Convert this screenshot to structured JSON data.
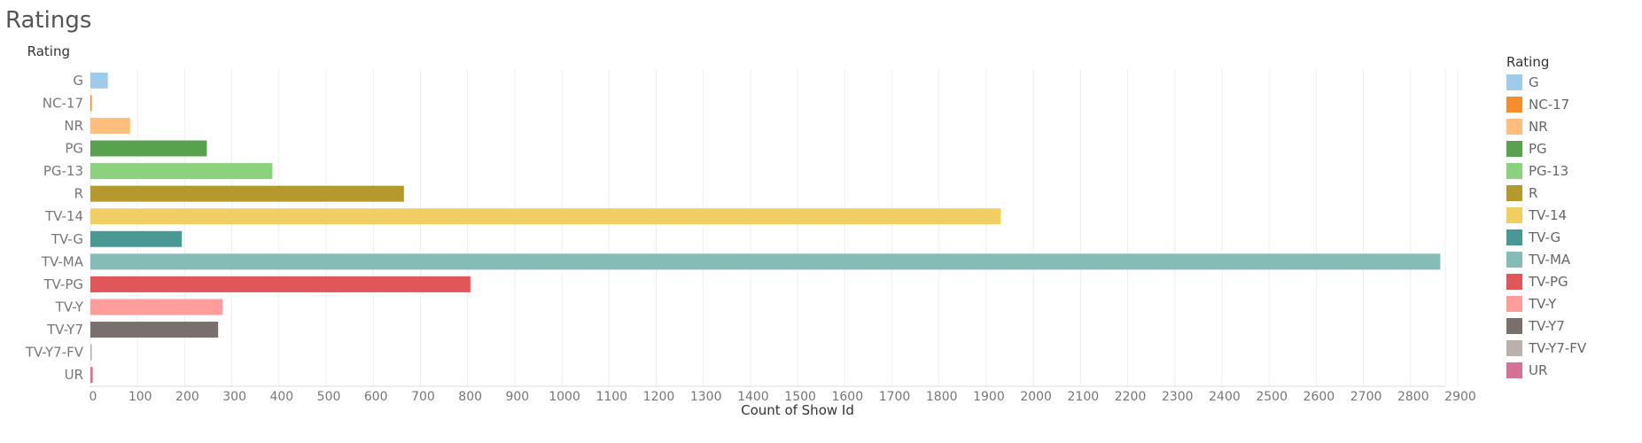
{
  "chart_data": {
    "type": "bar",
    "title": "Ratings",
    "orientation": "horizontal",
    "categories": [
      "G",
      "NC-17",
      "NR",
      "PG",
      "PG-13",
      "R",
      "TV-14",
      "TV-G",
      "TV-MA",
      "TV-PG",
      "TV-Y",
      "TV-Y7",
      "TV-Y7-FV",
      "UR"
    ],
    "values": [
      37,
      2,
      84,
      247,
      386,
      665,
      1931,
      194,
      2863,
      806,
      280,
      271,
      3,
      5
    ],
    "colors": [
      "#a0cbe8",
      "#f28e2b",
      "#ffbe7d",
      "#59a14f",
      "#8cd17d",
      "#b6992d",
      "#f1ce63",
      "#499894",
      "#86bcb6",
      "#e15759",
      "#ff9d9a",
      "#79706e",
      "#bab0ac",
      "#d37295"
    ],
    "row_label_header": "Rating",
    "xlabel": "Count of Show Id",
    "xlim": [
      0,
      3000
    ],
    "xticks": [
      0,
      100,
      200,
      300,
      400,
      500,
      600,
      700,
      800,
      900,
      1000,
      1100,
      1200,
      1300,
      1400,
      1500,
      1600,
      1700,
      1800,
      1900,
      2000,
      2100,
      2200,
      2300,
      2400,
      2500,
      2600,
      2700,
      2800,
      2900
    ],
    "grid": true,
    "legend": {
      "title": "Rating",
      "placement": "right"
    }
  }
}
